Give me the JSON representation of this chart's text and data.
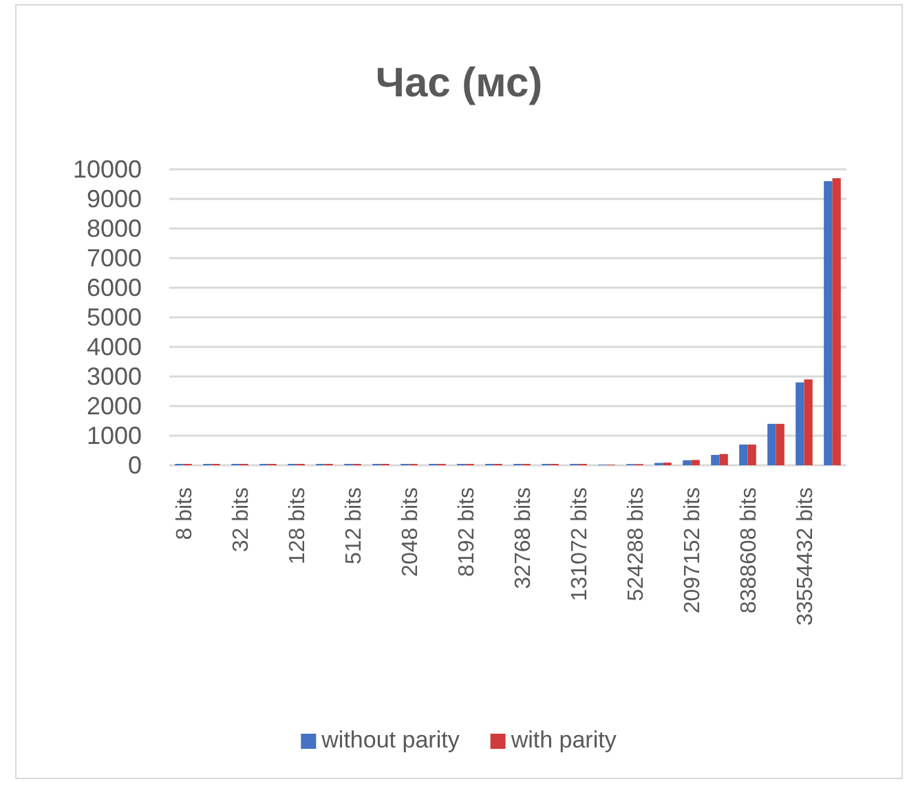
{
  "chart_data": {
    "type": "bar",
    "title": "Час (мс)",
    "categories": [
      "8 bits",
      null,
      "32 bits",
      null,
      "128 bits",
      null,
      "512 bits",
      null,
      "2048 bits",
      null,
      "8192 bits",
      null,
      "32768 bits",
      null,
      "131072 bits",
      null,
      "524288 bits",
      null,
      "2097152 bits",
      null,
      "8388608 bits",
      null,
      "33554432 bits",
      null
    ],
    "series": [
      {
        "name": "without parity",
        "color": "#4472c4",
        "values": [
          0,
          0,
          0,
          0,
          0,
          0,
          0,
          0,
          0,
          0,
          0,
          0,
          0,
          0,
          0,
          20,
          40,
          80,
          170,
          350,
          700,
          1400,
          2800,
          9600
        ]
      },
      {
        "name": "with parity",
        "color": "#d13b3b",
        "values": [
          0,
          0,
          0,
          0,
          0,
          0,
          0,
          0,
          0,
          0,
          0,
          0,
          0,
          0,
          0,
          20,
          40,
          90,
          180,
          380,
          700,
          1400,
          2900,
          9700
        ]
      }
    ],
    "ylim": [
      0,
      10000
    ],
    "yticks": [
      0,
      1000,
      2000,
      3000,
      4000,
      5000,
      6000,
      7000,
      8000,
      9000,
      10000
    ],
    "grid": "y",
    "legend": "bottom"
  }
}
